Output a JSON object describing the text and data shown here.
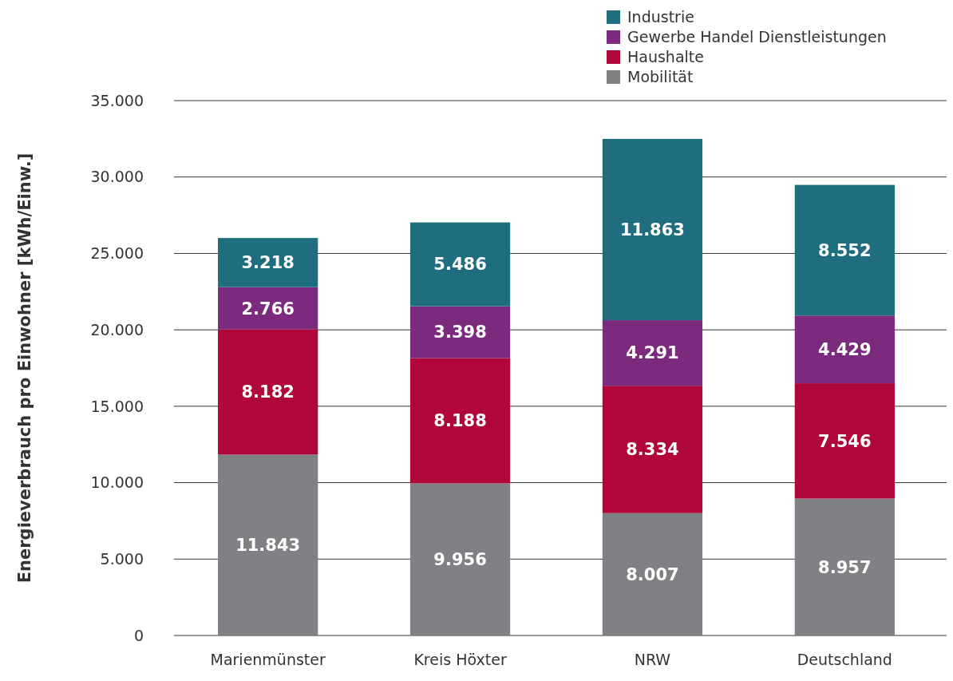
{
  "chart_data": {
    "type": "bar",
    "stacked": true,
    "ylabel": "Energieverbrauch pro Einwohner [kWh/Einw.]",
    "categories": [
      "Marienmünster",
      "Kreis Höxter",
      "NRW",
      "Deutschland"
    ],
    "series": [
      {
        "name": "Mobilität",
        "color": "#808184",
        "values": [
          11843,
          9956,
          8007,
          8957
        ],
        "value_labels": [
          "11.843",
          "9.956",
          "8.007",
          "8.957"
        ]
      },
      {
        "name": "Haushalte",
        "color": "#b0063a",
        "values": [
          8182,
          8188,
          8334,
          7546
        ],
        "value_labels": [
          "8.182",
          "8.188",
          "8.334",
          "7.546"
        ]
      },
      {
        "name": "Gewerbe Handel Dienstleistungen",
        "color": "#7b2a7e",
        "values": [
          2766,
          3398,
          4291,
          4429
        ],
        "value_labels": [
          "2.766",
          "3.398",
          "4.291",
          "4.429"
        ]
      },
      {
        "name": "Industrie",
        "color": "#1e6e80",
        "values": [
          3218,
          5486,
          11863,
          8552
        ],
        "value_labels": [
          "3.218",
          "5.486",
          "11.863",
          "8.552"
        ]
      }
    ],
    "ylim": [
      0,
      35000
    ],
    "yticks": [
      {
        "value": 0,
        "label": "0"
      },
      {
        "value": 5000,
        "label": "5.000"
      },
      {
        "value": 10000,
        "label": "10.000"
      },
      {
        "value": 15000,
        "label": "15.000"
      },
      {
        "value": 20000,
        "label": "20.000"
      },
      {
        "value": 25000,
        "label": "25.000"
      },
      {
        "value": 30000,
        "label": "30.000"
      },
      {
        "value": 35000,
        "label": "35.000"
      }
    ],
    "grid": "y",
    "legend": "top right"
  }
}
